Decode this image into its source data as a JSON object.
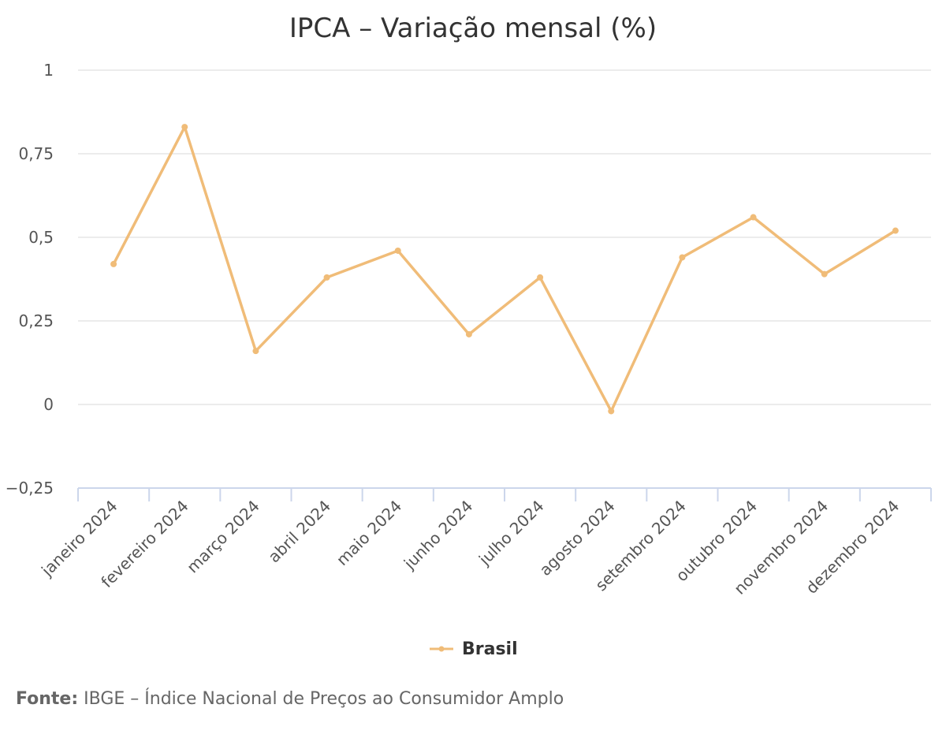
{
  "chart_data": {
    "type": "line",
    "title": "IPCA – Variação mensal (%)",
    "categories": [
      "janeiro 2024",
      "fevereiro 2024",
      "março 2024",
      "abril 2024",
      "maio 2024",
      "junho 2024",
      "julho 2024",
      "agosto 2024",
      "setembro 2024",
      "outubro 2024",
      "novembro 2024",
      "dezembro 2024"
    ],
    "series": [
      {
        "name": "Brasil",
        "values": [
          0.42,
          0.83,
          0.16,
          0.38,
          0.46,
          0.21,
          0.38,
          -0.02,
          0.44,
          0.56,
          0.39,
          0.52
        ]
      }
    ],
    "ylim": [
      -0.25,
      1
    ],
    "yticks": [
      -0.25,
      0,
      0.25,
      0.5,
      0.75,
      1
    ],
    "ytick_labels": [
      "−0,25",
      "0",
      "0,25",
      "0,5",
      "0,75",
      "1"
    ],
    "xlabel": "",
    "ylabel": "",
    "grid": true,
    "legend_position": "bottom-center",
    "colors": {
      "series": "#F0BC78",
      "grid": "#E6E6E6",
      "axis": "#CCD6EB"
    }
  },
  "source": {
    "label": "Fonte:",
    "text": "IBGE – Índice Nacional de Preços ao Consumidor Amplo"
  }
}
